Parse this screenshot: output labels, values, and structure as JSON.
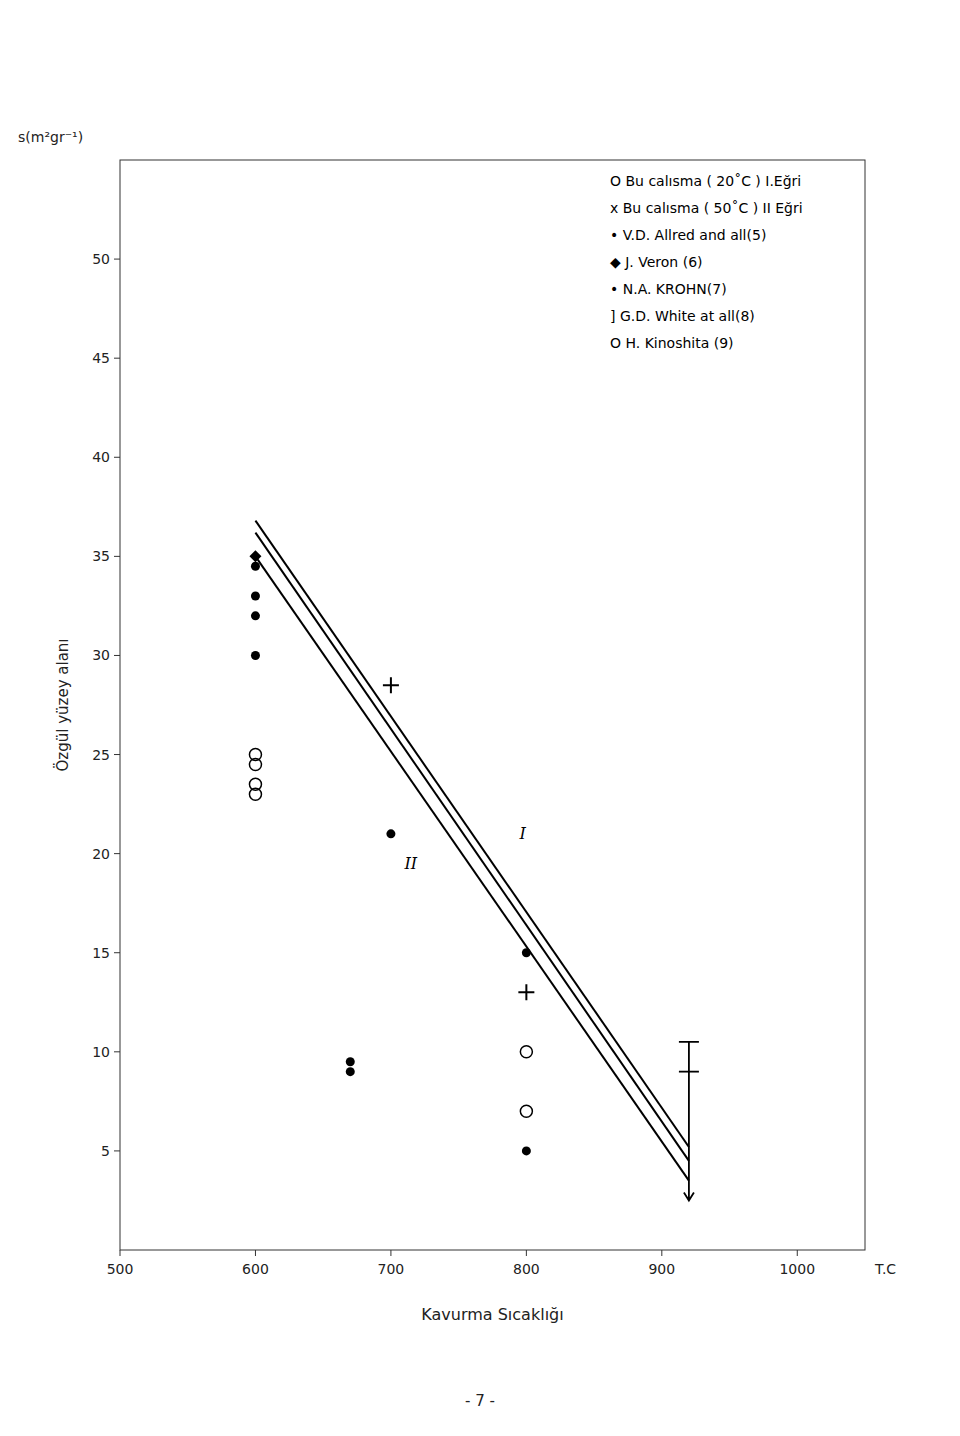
{
  "chart_data": {
    "type": "scatter",
    "y_unit": "s(m²gr⁻¹)",
    "xlabel": "Kavurma  Sıcaklığı",
    "x_unit": "T.C",
    "ylabel": "Özgül yüzey  alanı",
    "page_number": "- 7 -",
    "xlim": [
      500,
      1050
    ],
    "ylim": [
      0,
      55
    ],
    "xticks": [
      500,
      600,
      700,
      800,
      900,
      1000
    ],
    "yticks": [
      5,
      10,
      15,
      20,
      25,
      30,
      35,
      40,
      45,
      50
    ],
    "grid": false,
    "legend": "upper right",
    "color": "#000000",
    "series": [
      {
        "type": "line",
        "x": [
          600,
          920
        ],
        "values": [
          36.2,
          4.5
        ]
      },
      {
        "type": "line",
        "x": [
          600,
          920
        ],
        "values": [
          35.0,
          3.5
        ]
      },
      {
        "type": "line",
        "x": [
          600,
          920
        ],
        "values": [
          36.8,
          5.2
        ]
      },
      {
        "name": "O  Bu  calısma ( 20˚C ) I.Eğri",
        "marker": "circle-open",
        "x": [
          600,
          600,
          800,
          800
        ],
        "values": [
          25.0,
          23.5,
          10.0,
          7.0
        ]
      },
      {
        "name": "x  Bu  calısma ( 50˚C ) II Eğri",
        "marker": "plus",
        "x": [
          700,
          800
        ],
        "values": [
          28.5,
          13.0
        ]
      },
      {
        "name": "•  V.D. Allred and all(5)",
        "marker": "circle",
        "x": [
          600,
          600,
          600,
          700,
          800,
          800,
          670,
          670
        ],
        "values": [
          34.5,
          32.0,
          30.0,
          21.0,
          15.0,
          5.0,
          9.5,
          9.0
        ]
      },
      {
        "name": "◆  J. Veron (6)",
        "marker": "diamond",
        "x": [
          600
        ],
        "values": [
          35.0
        ]
      },
      {
        "name": "•  N.A.  KROHN(7)",
        "marker": "circle",
        "x": [
          600
        ],
        "values": [
          33.0
        ]
      },
      {
        "name": "]  G.D. White  at all(8)",
        "marker": "bracket",
        "x": [
          920
        ],
        "values": [
          9.0
        ],
        "y_top": [
          10.5
        ],
        "y_bottom": [
          2.5
        ]
      },
      {
        "name": "O  H. Kinoshita  (9)",
        "marker": "circle-open",
        "x": [
          600,
          600
        ],
        "values": [
          24.5,
          23.0
        ]
      }
    ],
    "annotations": [
      {
        "text": "I",
        "x": 795,
        "y": 21.0
      },
      {
        "text": "II",
        "x": 710,
        "y": 19.5
      }
    ]
  }
}
